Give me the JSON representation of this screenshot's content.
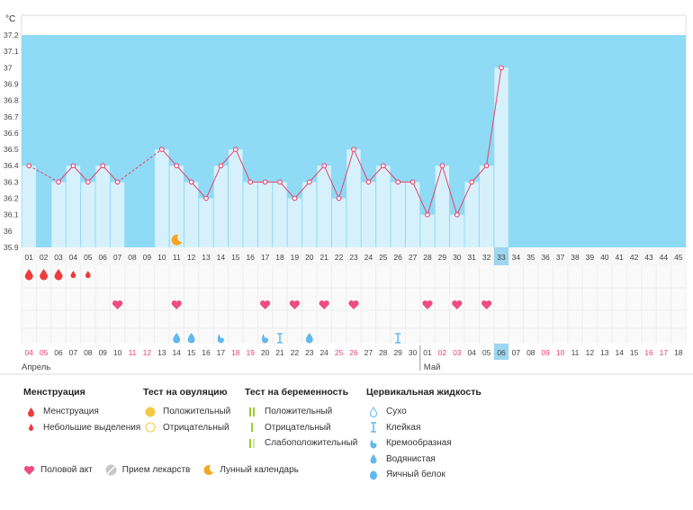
{
  "chart_data": {
    "type": "bar",
    "unit_label": "°C",
    "ylim": [
      35.9,
      37.2
    ],
    "yticks": [
      "37.2",
      "37.1",
      "37",
      "36.9",
      "36.8",
      "36.7",
      "36.6",
      "36.5",
      "36.4",
      "36.3",
      "36.2",
      "36.1",
      "36",
      "35.9"
    ],
    "cycle_days": [
      "01",
      "02",
      "03",
      "04",
      "05",
      "06",
      "07",
      "08",
      "09",
      "10",
      "11",
      "12",
      "13",
      "14",
      "15",
      "16",
      "17",
      "18",
      "19",
      "20",
      "21",
      "22",
      "23",
      "24",
      "25",
      "26",
      "27",
      "28",
      "29",
      "30",
      "31",
      "32",
      "33",
      "34",
      "35",
      "36",
      "37",
      "38",
      "39",
      "40",
      "41",
      "42",
      "43",
      "44",
      "45"
    ],
    "current_day": "33",
    "temperatures": [
      36.4,
      null,
      36.3,
      36.4,
      36.3,
      36.4,
      36.3,
      null,
      null,
      36.5,
      36.4,
      36.3,
      36.2,
      36.4,
      36.5,
      36.3,
      36.3,
      36.3,
      36.2,
      36.3,
      36.4,
      36.2,
      36.5,
      36.3,
      36.4,
      36.3,
      36.3,
      36.1,
      36.4,
      36.1,
      36.3,
      36.4,
      37.0
    ],
    "menstruation": [
      "heavy",
      "heavy",
      "heavy",
      "light",
      "light"
    ],
    "intercourse_days": [
      "07",
      "11",
      "17",
      "19",
      "21",
      "23",
      "28",
      "30",
      "32"
    ],
    "cervical_fluid": [
      {
        "day": "11",
        "type": "watery"
      },
      {
        "day": "12",
        "type": "watery"
      },
      {
        "day": "14",
        "type": "creamy"
      },
      {
        "day": "17",
        "type": "creamy"
      },
      {
        "day": "18",
        "type": "sticky"
      },
      {
        "day": "20",
        "type": "watery"
      },
      {
        "day": "26",
        "type": "sticky"
      }
    ],
    "moon_day": "11",
    "dates": [
      "04",
      "05",
      "06",
      "07",
      "08",
      "09",
      "10",
      "11",
      "12",
      "13",
      "14",
      "15",
      "16",
      "17",
      "18",
      "19",
      "20",
      "21",
      "22",
      "23",
      "24",
      "25",
      "26",
      "27",
      "28",
      "29",
      "30",
      "01",
      "02",
      "03",
      "04",
      "05",
      "06",
      "07",
      "08",
      "09",
      "10",
      "11",
      "12",
      "13",
      "14",
      "15",
      "16",
      "17",
      "18"
    ],
    "weekend_dates_idx": [
      0,
      1,
      7,
      8,
      14,
      15,
      21,
      22,
      28,
      29,
      35,
      36,
      42,
      43
    ],
    "today_date": "06",
    "month_labels": [
      {
        "label": "Апрель",
        "start_index": 0
      },
      {
        "label": "Май",
        "start_index": 27
      }
    ]
  },
  "legend": {
    "menstruation": {
      "title": "Менструация",
      "items": [
        "Менструация",
        "Небольшие выделения"
      ]
    },
    "ovulation_test": {
      "title": "Тест на овуляцию",
      "items": [
        "Положительный",
        "Отрицательный"
      ]
    },
    "pregnancy_test": {
      "title": "Тест на беременность",
      "items": [
        "Положительный",
        "Отрицательный",
        "Слабоположительный"
      ]
    },
    "cervical_fluid": {
      "title": "Цервикальная жидкость",
      "items": [
        "Сухо",
        "Клейкая",
        "Кремообразная",
        "Водянистая",
        "Яичный белок"
      ]
    },
    "bottom": [
      "Половой акт",
      "Прием лекарств",
      "Лунный календарь"
    ]
  },
  "colors": {
    "bg_blue": "#8fdaf5",
    "bar": "#d6f1fc",
    "line": "#e5456e",
    "pink": "#ee4d84",
    "red": "#ee3b3b",
    "drop_blue": "#62b9ec",
    "moon": "#f5a623",
    "weekend": "#e5456e",
    "current": "#9dd6ee"
  }
}
